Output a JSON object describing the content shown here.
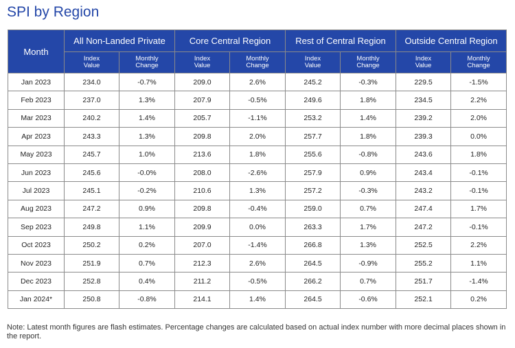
{
  "title": "SPI by Region",
  "table": {
    "month_header": "Month",
    "groups": [
      "All Non-Landed Private",
      "Core Central Region",
      "Rest of Central Region",
      "Outside Central Region"
    ],
    "sub_headers": [
      [
        "Index",
        "Value"
      ],
      [
        "Monthly",
        "Change"
      ],
      [
        "Index",
        "Value"
      ],
      [
        "Monthly",
        "Change"
      ],
      [
        "Index",
        "Value"
      ],
      [
        "Monthly",
        "Change"
      ],
      [
        "Index",
        "Value"
      ],
      [
        "Monthly",
        "Change"
      ]
    ],
    "rows": [
      [
        "Jan 2023",
        "234.0",
        "-0.7%",
        "209.0",
        "2.6%",
        "245.2",
        "-0.3%",
        "229.5",
        "-1.5%"
      ],
      [
        "Feb 2023",
        "237.0",
        "1.3%",
        "207.9",
        "-0.5%",
        "249.6",
        "1.8%",
        "234.5",
        "2.2%"
      ],
      [
        "Mar 2023",
        "240.2",
        "1.4%",
        "205.7",
        "-1.1%",
        "253.2",
        "1.4%",
        "239.2",
        "2.0%"
      ],
      [
        "Apr 2023",
        "243.3",
        "1.3%",
        "209.8",
        "2.0%",
        "257.7",
        "1.8%",
        "239.3",
        "0.0%"
      ],
      [
        "May 2023",
        "245.7",
        "1.0%",
        "213.6",
        "1.8%",
        "255.6",
        "-0.8%",
        "243.6",
        "1.8%"
      ],
      [
        "Jun 2023",
        "245.6",
        "-0.0%",
        "208.0",
        "-2.6%",
        "257.9",
        "0.9%",
        "243.4",
        "-0.1%"
      ],
      [
        "Jul 2023",
        "245.1",
        "-0.2%",
        "210.6",
        "1.3%",
        "257.2",
        "-0.3%",
        "243.2",
        "-0.1%"
      ],
      [
        "Aug 2023",
        "247.2",
        "0.9%",
        "209.8",
        "-0.4%",
        "259.0",
        "0.7%",
        "247.4",
        "1.7%"
      ],
      [
        "Sep 2023",
        "249.8",
        "1.1%",
        "209.9",
        "0.0%",
        "263.3",
        "1.7%",
        "247.2",
        "-0.1%"
      ],
      [
        "Oct 2023",
        "250.2",
        "0.2%",
        "207.0",
        "-1.4%",
        "266.8",
        "1.3%",
        "252.5",
        "2.2%"
      ],
      [
        "Nov 2023",
        "251.9",
        "0.7%",
        "212.3",
        "2.6%",
        "264.5",
        "-0.9%",
        "255.2",
        "1.1%"
      ],
      [
        "Dec 2023",
        "252.8",
        "0.4%",
        "211.2",
        "-0.5%",
        "266.2",
        "0.7%",
        "251.7",
        "-1.4%"
      ],
      [
        "Jan 2024*",
        "250.8",
        "-0.8%",
        "214.1",
        "1.4%",
        "264.5",
        "-0.6%",
        "252.1",
        "0.2%"
      ]
    ]
  },
  "note": "Note: Latest month figures are flash estimates. Percentage changes are calculated based on actual index number with more decimal places shown in the report."
}
